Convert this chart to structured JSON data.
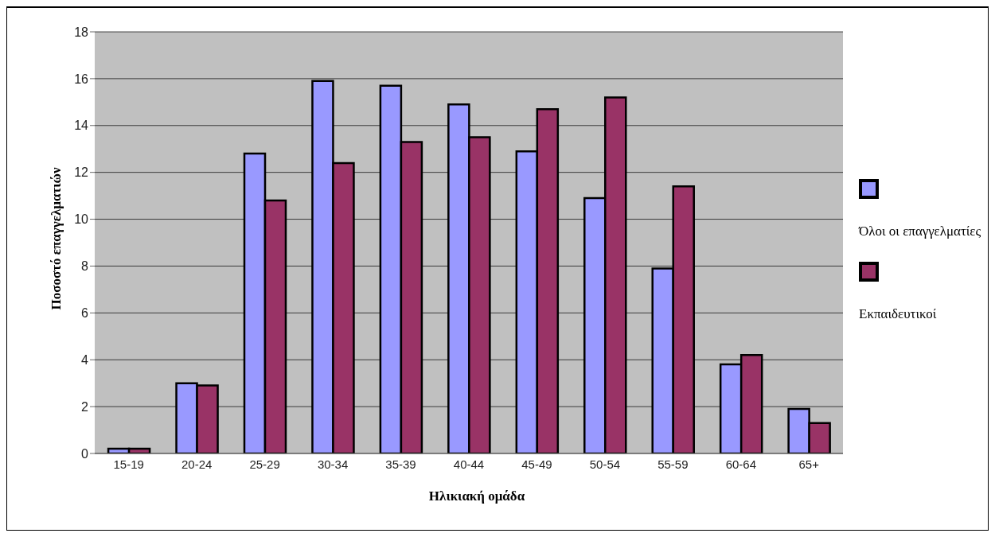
{
  "chart_data": {
    "type": "bar",
    "xlabel": "Ηλικιακή ομάδα",
    "ylabel": "Ποσοστό επαγγελματιών",
    "categories": [
      "15-19",
      "20-24",
      "25-29",
      "30-34",
      "35-39",
      "40-44",
      "45-49",
      "50-54",
      "55-59",
      "60-64",
      "65+"
    ],
    "series": [
      {
        "name": "Όλοι οι επαγγελματίες",
        "color": "#9999ff",
        "values": [
          0.2,
          3.0,
          12.8,
          15.9,
          15.7,
          14.9,
          12.9,
          10.9,
          7.9,
          3.8,
          1.9
        ]
      },
      {
        "name": "Εκπαιδευτικοί",
        "color": "#993366",
        "values": [
          0.2,
          2.9,
          10.8,
          12.4,
          13.3,
          13.5,
          14.7,
          15.2,
          11.4,
          4.2,
          1.3
        ]
      }
    ],
    "ylim": [
      0,
      18
    ],
    "yticks": [
      0,
      2,
      4,
      6,
      8,
      10,
      12,
      14,
      16,
      18
    ],
    "grid": "y",
    "legend": "right"
  }
}
